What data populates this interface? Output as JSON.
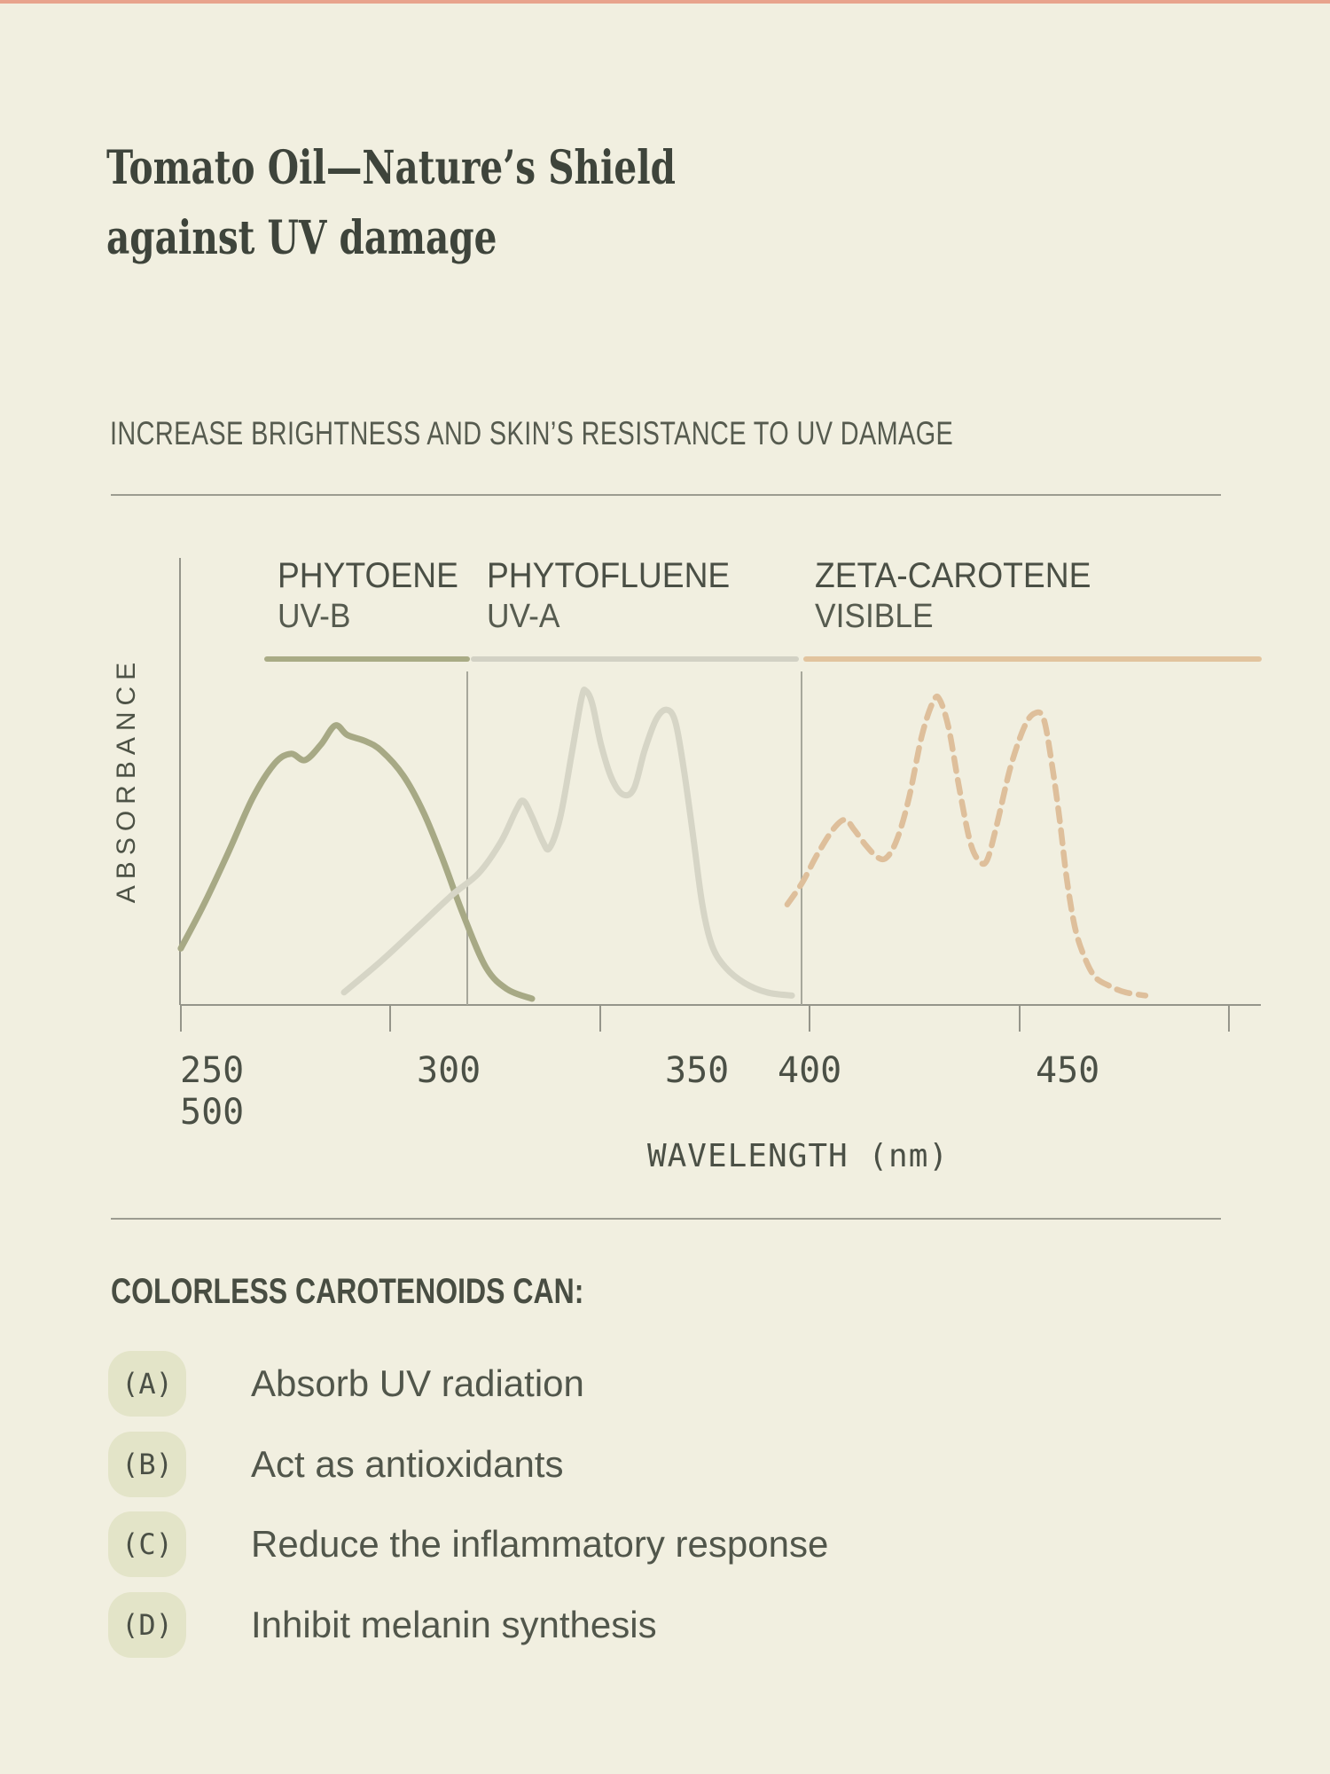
{
  "page": {
    "background": "#f1efe0",
    "top_strip_color": "#e8a38d"
  },
  "header": {
    "title_line1": "Tomato Oil—Nature’s Shield",
    "title_line2": "against UV damage",
    "subtitle": "INCREASE BRIGHTNESS AND SKIN’S RESISTANCE TO UV DAMAGE"
  },
  "chart": {
    "y_axis_label": "ABSORBANCE",
    "x_axis_label": "WAVELENGTH (nm)",
    "sections": [
      {
        "name": "PHYTOENE",
        "band": "UV-B",
        "bar_color": "#a9ab85"
      },
      {
        "name": "PHYTOFLUENE",
        "band": "UV-A",
        "bar_color": "#d2d1c4"
      },
      {
        "name": "ZETA-CAROTENE",
        "band": "VISIBLE",
        "bar_color": "#e2c49e"
      }
    ],
    "x_ticks": [
      {
        "label": "250"
      },
      {
        "label": "300"
      },
      {
        "label": "350"
      },
      {
        "label": "400"
      },
      {
        "label": "450"
      },
      {
        "label": "500"
      }
    ]
  },
  "chart_data": {
    "type": "line",
    "title": "",
    "xlabel": "WAVELENGTH (nm)",
    "ylabel": "ABSORBANCE",
    "x_range_nm": [
      250,
      500
    ],
    "x_tick_labels": [
      250,
      300,
      350,
      400,
      450,
      500
    ],
    "y_axis_units": "relative absorbance (unitless 0–1, no y ticks shown)",
    "grid": false,
    "legend_position": "section labels above chart",
    "bands": [
      {
        "label": "UV-B",
        "compound": "PHYTOENE",
        "x_start_nm": 250,
        "x_end_nm": 320
      },
      {
        "label": "UV-A",
        "compound": "PHYTOFLUENE",
        "x_start_nm": 320,
        "x_end_nm": 400
      },
      {
        "label": "VISIBLE",
        "compound": "ZETA-CAROTENE",
        "x_start_nm": 400,
        "x_end_nm": 500
      }
    ],
    "series": [
      {
        "name": "Phytoene",
        "color": "#a7a985",
        "style": "solid",
        "points": [
          [
            250.2,
            0.18
          ],
          [
            255.7,
            0.32
          ],
          [
            261.7,
            0.49
          ],
          [
            267.4,
            0.66
          ],
          [
            272.7,
            0.77
          ],
          [
            276.5,
            0.8
          ],
          [
            279.9,
            0.78
          ],
          [
            283.7,
            0.83
          ],
          [
            287.1,
            0.89
          ],
          [
            290.0,
            0.86
          ],
          [
            294.3,
            0.84
          ],
          [
            298.1,
            0.81
          ],
          [
            303.4,
            0.73
          ],
          [
            308.3,
            0.61
          ],
          [
            312.9,
            0.46
          ],
          [
            317.6,
            0.29
          ],
          [
            323.1,
            0.12
          ],
          [
            328.2,
            0.05
          ],
          [
            334.1,
            0.02
          ]
        ]
      },
      {
        "name": "Phytofluene",
        "color": "#d6d5c6",
        "style": "solid",
        "points": [
          [
            289.2,
            0.04
          ],
          [
            298.1,
            0.14
          ],
          [
            307.0,
            0.25
          ],
          [
            315.0,
            0.35
          ],
          [
            321.4,
            0.42
          ],
          [
            326.7,
            0.52
          ],
          [
            330.3,
            0.62
          ],
          [
            332.0,
            0.65
          ],
          [
            334.1,
            0.6
          ],
          [
            336.7,
            0.52
          ],
          [
            338.3,
            0.5
          ],
          [
            340.9,
            0.6
          ],
          [
            343.6,
            0.8
          ],
          [
            346.0,
            0.98
          ],
          [
            347.0,
            1.0
          ],
          [
            348.5,
            0.96
          ],
          [
            350.6,
            0.83
          ],
          [
            353.2,
            0.72
          ],
          [
            355.9,
            0.67
          ],
          [
            358.5,
            0.69
          ],
          [
            361.0,
            0.81
          ],
          [
            363.8,
            0.91
          ],
          [
            366.3,
            0.94
          ],
          [
            368.4,
            0.9
          ],
          [
            370.5,
            0.74
          ],
          [
            372.7,
            0.53
          ],
          [
            374.8,
            0.32
          ],
          [
            377.1,
            0.19
          ],
          [
            380.3,
            0.12
          ],
          [
            384.9,
            0.07
          ],
          [
            390.3,
            0.04
          ],
          [
            396.2,
            0.03
          ]
        ]
      },
      {
        "name": "Zeta-carotene",
        "color": "#debf9b",
        "style": "dashed",
        "points": [
          [
            395.1,
            0.32
          ],
          [
            398.7,
            0.39
          ],
          [
            402.3,
            0.48
          ],
          [
            406.1,
            0.56
          ],
          [
            408.9,
            0.59
          ],
          [
            411.0,
            0.56
          ],
          [
            413.8,
            0.51
          ],
          [
            416.7,
            0.47
          ],
          [
            418.9,
            0.47
          ],
          [
            421.4,
            0.53
          ],
          [
            424.2,
            0.66
          ],
          [
            427.3,
            0.86
          ],
          [
            430.1,
            0.97
          ],
          [
            431.6,
            0.97
          ],
          [
            433.7,
            0.88
          ],
          [
            436.2,
            0.69
          ],
          [
            438.8,
            0.52
          ],
          [
            440.9,
            0.46
          ],
          [
            442.8,
            0.46
          ],
          [
            445.1,
            0.57
          ],
          [
            448.5,
            0.76
          ],
          [
            451.9,
            0.89
          ],
          [
            454.4,
            0.93
          ],
          [
            456.4,
            0.91
          ],
          [
            458.3,
            0.77
          ],
          [
            460.2,
            0.59
          ],
          [
            461.9,
            0.4
          ],
          [
            463.8,
            0.25
          ],
          [
            465.9,
            0.16
          ],
          [
            468.6,
            0.09
          ],
          [
            472.2,
            0.06
          ],
          [
            476.0,
            0.04
          ],
          [
            480.7,
            0.03
          ]
        ]
      }
    ]
  },
  "benefits": {
    "heading": "COLORLESS CAROTENOIDS CAN:",
    "items": [
      {
        "badge": "(A)",
        "text": "Absorb UV radiation"
      },
      {
        "badge": "(B)",
        "text": "Act as antioxidants"
      },
      {
        "badge": "(C)",
        "text": "Reduce the inflammatory response"
      },
      {
        "badge": "(D)",
        "text": "Inhibit melanin synthesis"
      }
    ],
    "badge_color": "#e3e4c8"
  }
}
